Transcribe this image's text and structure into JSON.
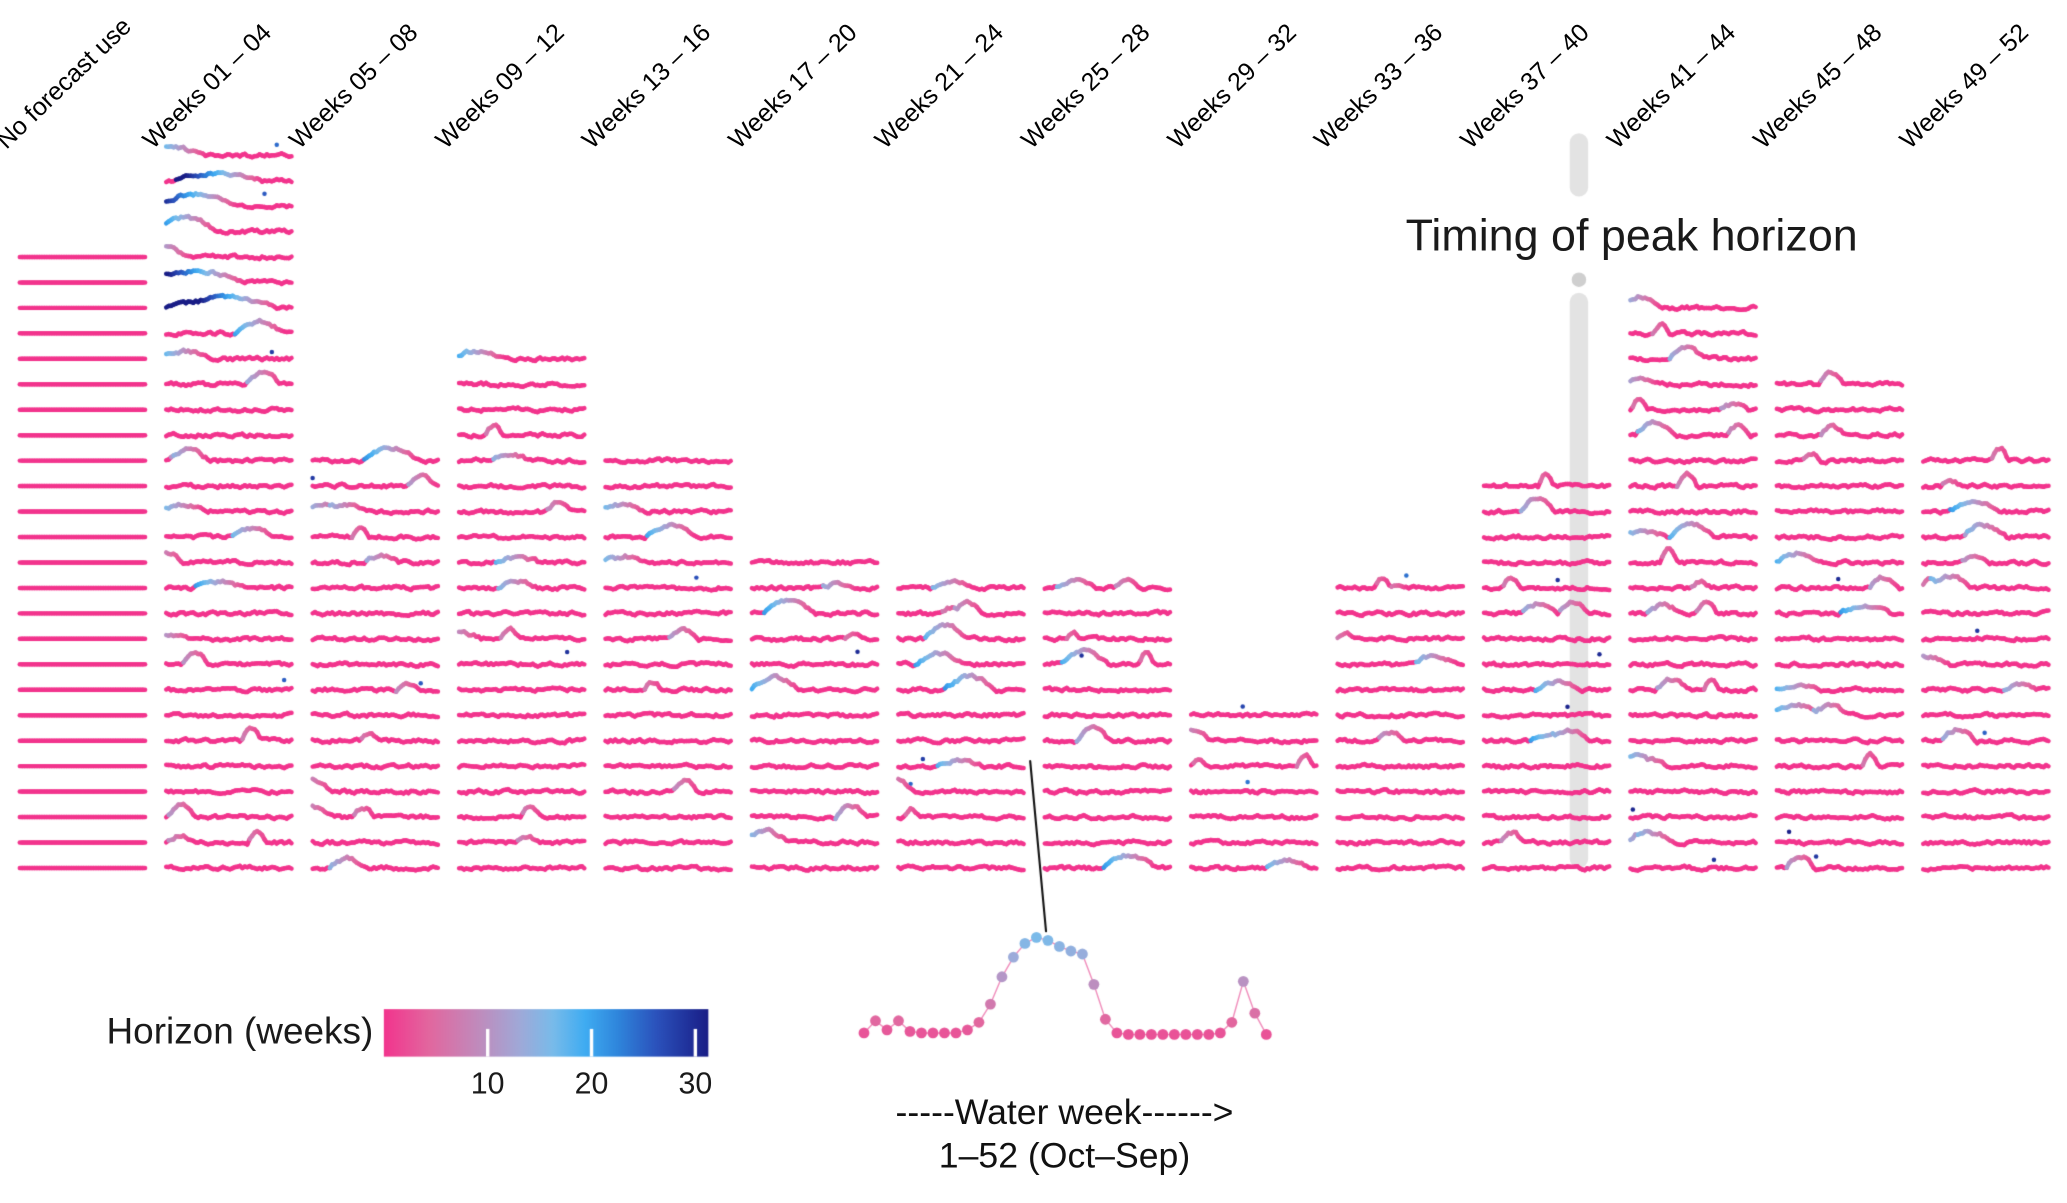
{
  "chart_data": {
    "type": "line",
    "subtype": "small-multiples-sparkline-columns",
    "description": "Columns of stacked horizontal sparkline strips (one strip per site-year), colored by forecast horizon in weeks (pink = short horizon, blue = long). Column height encodes number of cases whose peak fell in that 4-week window.",
    "categories": [
      "No forecast use",
      "Weeks 01 – 04",
      "Weeks 05 – 08",
      "Weeks 09 – 12",
      "Weeks 13 – 16",
      "Weeks 17 – 20",
      "Weeks 21 – 24",
      "Weeks 25 – 28",
      "Weeks 29 – 32",
      "Weeks 33 – 36",
      "Weeks 37 – 40",
      "Weeks 41 – 44",
      "Weeks 45 – 48",
      "Weeks 49 – 52"
    ],
    "row_counts": [
      25,
      29,
      17,
      21,
      17,
      13,
      12,
      12,
      7,
      12,
      16,
      23,
      20,
      17
    ],
    "columns": [
      {
        "label": "No forecast use",
        "rows": 25,
        "activity": 0.0,
        "flat": true
      },
      {
        "label": "Weeks 01 – 04",
        "rows": 29,
        "activity": 0.95,
        "flat": false
      },
      {
        "label": "Weeks 05 – 08",
        "rows": 17,
        "activity": 0.6,
        "flat": false
      },
      {
        "label": "Weeks 09 – 12",
        "rows": 21,
        "activity": 0.65,
        "flat": false
      },
      {
        "label": "Weeks 13 – 16",
        "rows": 17,
        "activity": 0.7,
        "flat": false
      },
      {
        "label": "Weeks 17 – 20",
        "rows": 13,
        "activity": 0.6,
        "flat": false
      },
      {
        "label": "Weeks 21 – 24",
        "rows": 12,
        "activity": 0.6,
        "flat": false
      },
      {
        "label": "Weeks 25 – 28",
        "rows": 12,
        "activity": 0.6,
        "flat": false
      },
      {
        "label": "Weeks 29 – 32",
        "rows": 7,
        "activity": 0.55,
        "flat": false
      },
      {
        "label": "Weeks 33 – 36",
        "rows": 12,
        "activity": 0.5,
        "flat": false
      },
      {
        "label": "Weeks 37 – 40",
        "rows": 16,
        "activity": 0.6,
        "flat": false
      },
      {
        "label": "Weeks 41 – 44",
        "rows": 23,
        "activity": 0.7,
        "flat": false
      },
      {
        "label": "Weeks 45 – 48",
        "rows": 20,
        "activity": 0.65,
        "flat": false
      },
      {
        "label": "Weeks 49 – 52",
        "rows": 17,
        "activity": 0.6,
        "flat": false
      }
    ],
    "weeks_per_strip": 52,
    "annotation": {
      "text": "Timing of peak horizon",
      "column_label": "Weeks 37 – 40"
    },
    "colorbar": {
      "title": "Horizon (weeks)",
      "ticks": [
        10,
        20,
        30
      ],
      "domain": [
        0,
        31.25
      ],
      "gradient": [
        [
          0.0,
          "#F2348D"
        ],
        [
          0.14,
          "#E2679F"
        ],
        [
          0.3,
          "#BE8DBE"
        ],
        [
          0.42,
          "#9FA9D8"
        ],
        [
          0.52,
          "#79BBEA"
        ],
        [
          0.62,
          "#3FACF2"
        ],
        [
          0.72,
          "#2F86DC"
        ],
        [
          0.84,
          "#2B52BC"
        ],
        [
          1.0,
          "#191D86"
        ]
      ]
    },
    "inset": {
      "label_line1": "-----Water week------>",
      "label_line2": "1–52 (Oct–Sep)",
      "values": [
        0.13,
        0.21,
        0.15,
        0.21,
        0.14,
        0.13,
        0.13,
        0.13,
        0.13,
        0.15,
        0.2,
        0.32,
        0.5,
        0.63,
        0.72,
        0.76,
        0.74,
        0.7,
        0.67,
        0.65,
        0.45,
        0.22,
        0.13,
        0.12,
        0.12,
        0.12,
        0.12,
        0.12,
        0.12,
        0.12,
        0.12,
        0.13,
        0.2,
        0.47,
        0.26,
        0.12
      ]
    },
    "colors": {
      "flat_pink": "#F2348D",
      "band_gray": "#E3E3E3",
      "band_dot_gray": "#CFCFCF",
      "callout_black": "#111111"
    }
  }
}
